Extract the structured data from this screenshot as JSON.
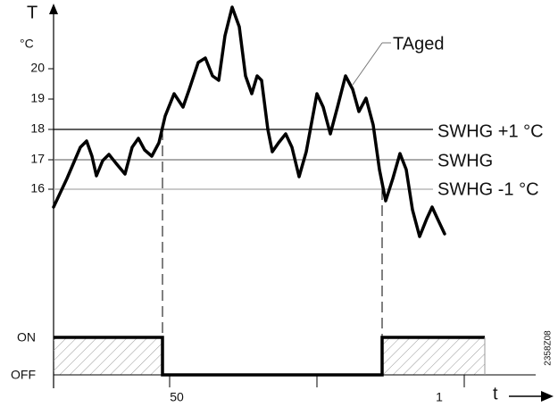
{
  "axis": {
    "title": "T",
    "unit": "°C",
    "ticks": [
      "20",
      "19",
      "18",
      "17",
      "16"
    ]
  },
  "labels": {
    "curve": "TAged",
    "upper": "SWHG +1 °C",
    "middle": "SWHG",
    "lower": "SWHG -1 °C"
  },
  "switch": {
    "on": "ON",
    "off": "OFF"
  },
  "time": {
    "ticks": [
      "50",
      "1"
    ],
    "label": "t"
  },
  "code": "2358Z08"
}
